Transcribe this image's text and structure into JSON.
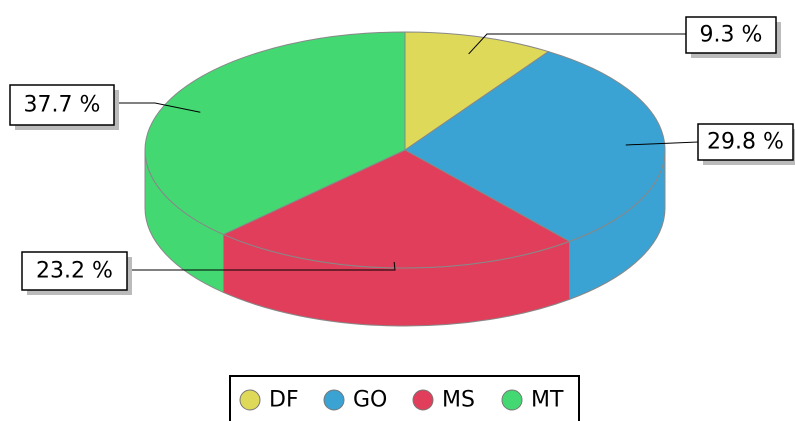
{
  "chart_data": {
    "type": "pie3d",
    "categories": [
      "DF",
      "GO",
      "MS",
      "MT"
    ],
    "values": [
      9.3,
      29.8,
      23.2,
      37.7
    ],
    "value_labels": [
      "9.3 %",
      "29.8 %",
      "23.2 %",
      "37.7 %"
    ],
    "colors": [
      "#dfd95a",
      "#3aa3d3",
      "#e03e5a",
      "#44d873"
    ],
    "legend": "bottom"
  }
}
